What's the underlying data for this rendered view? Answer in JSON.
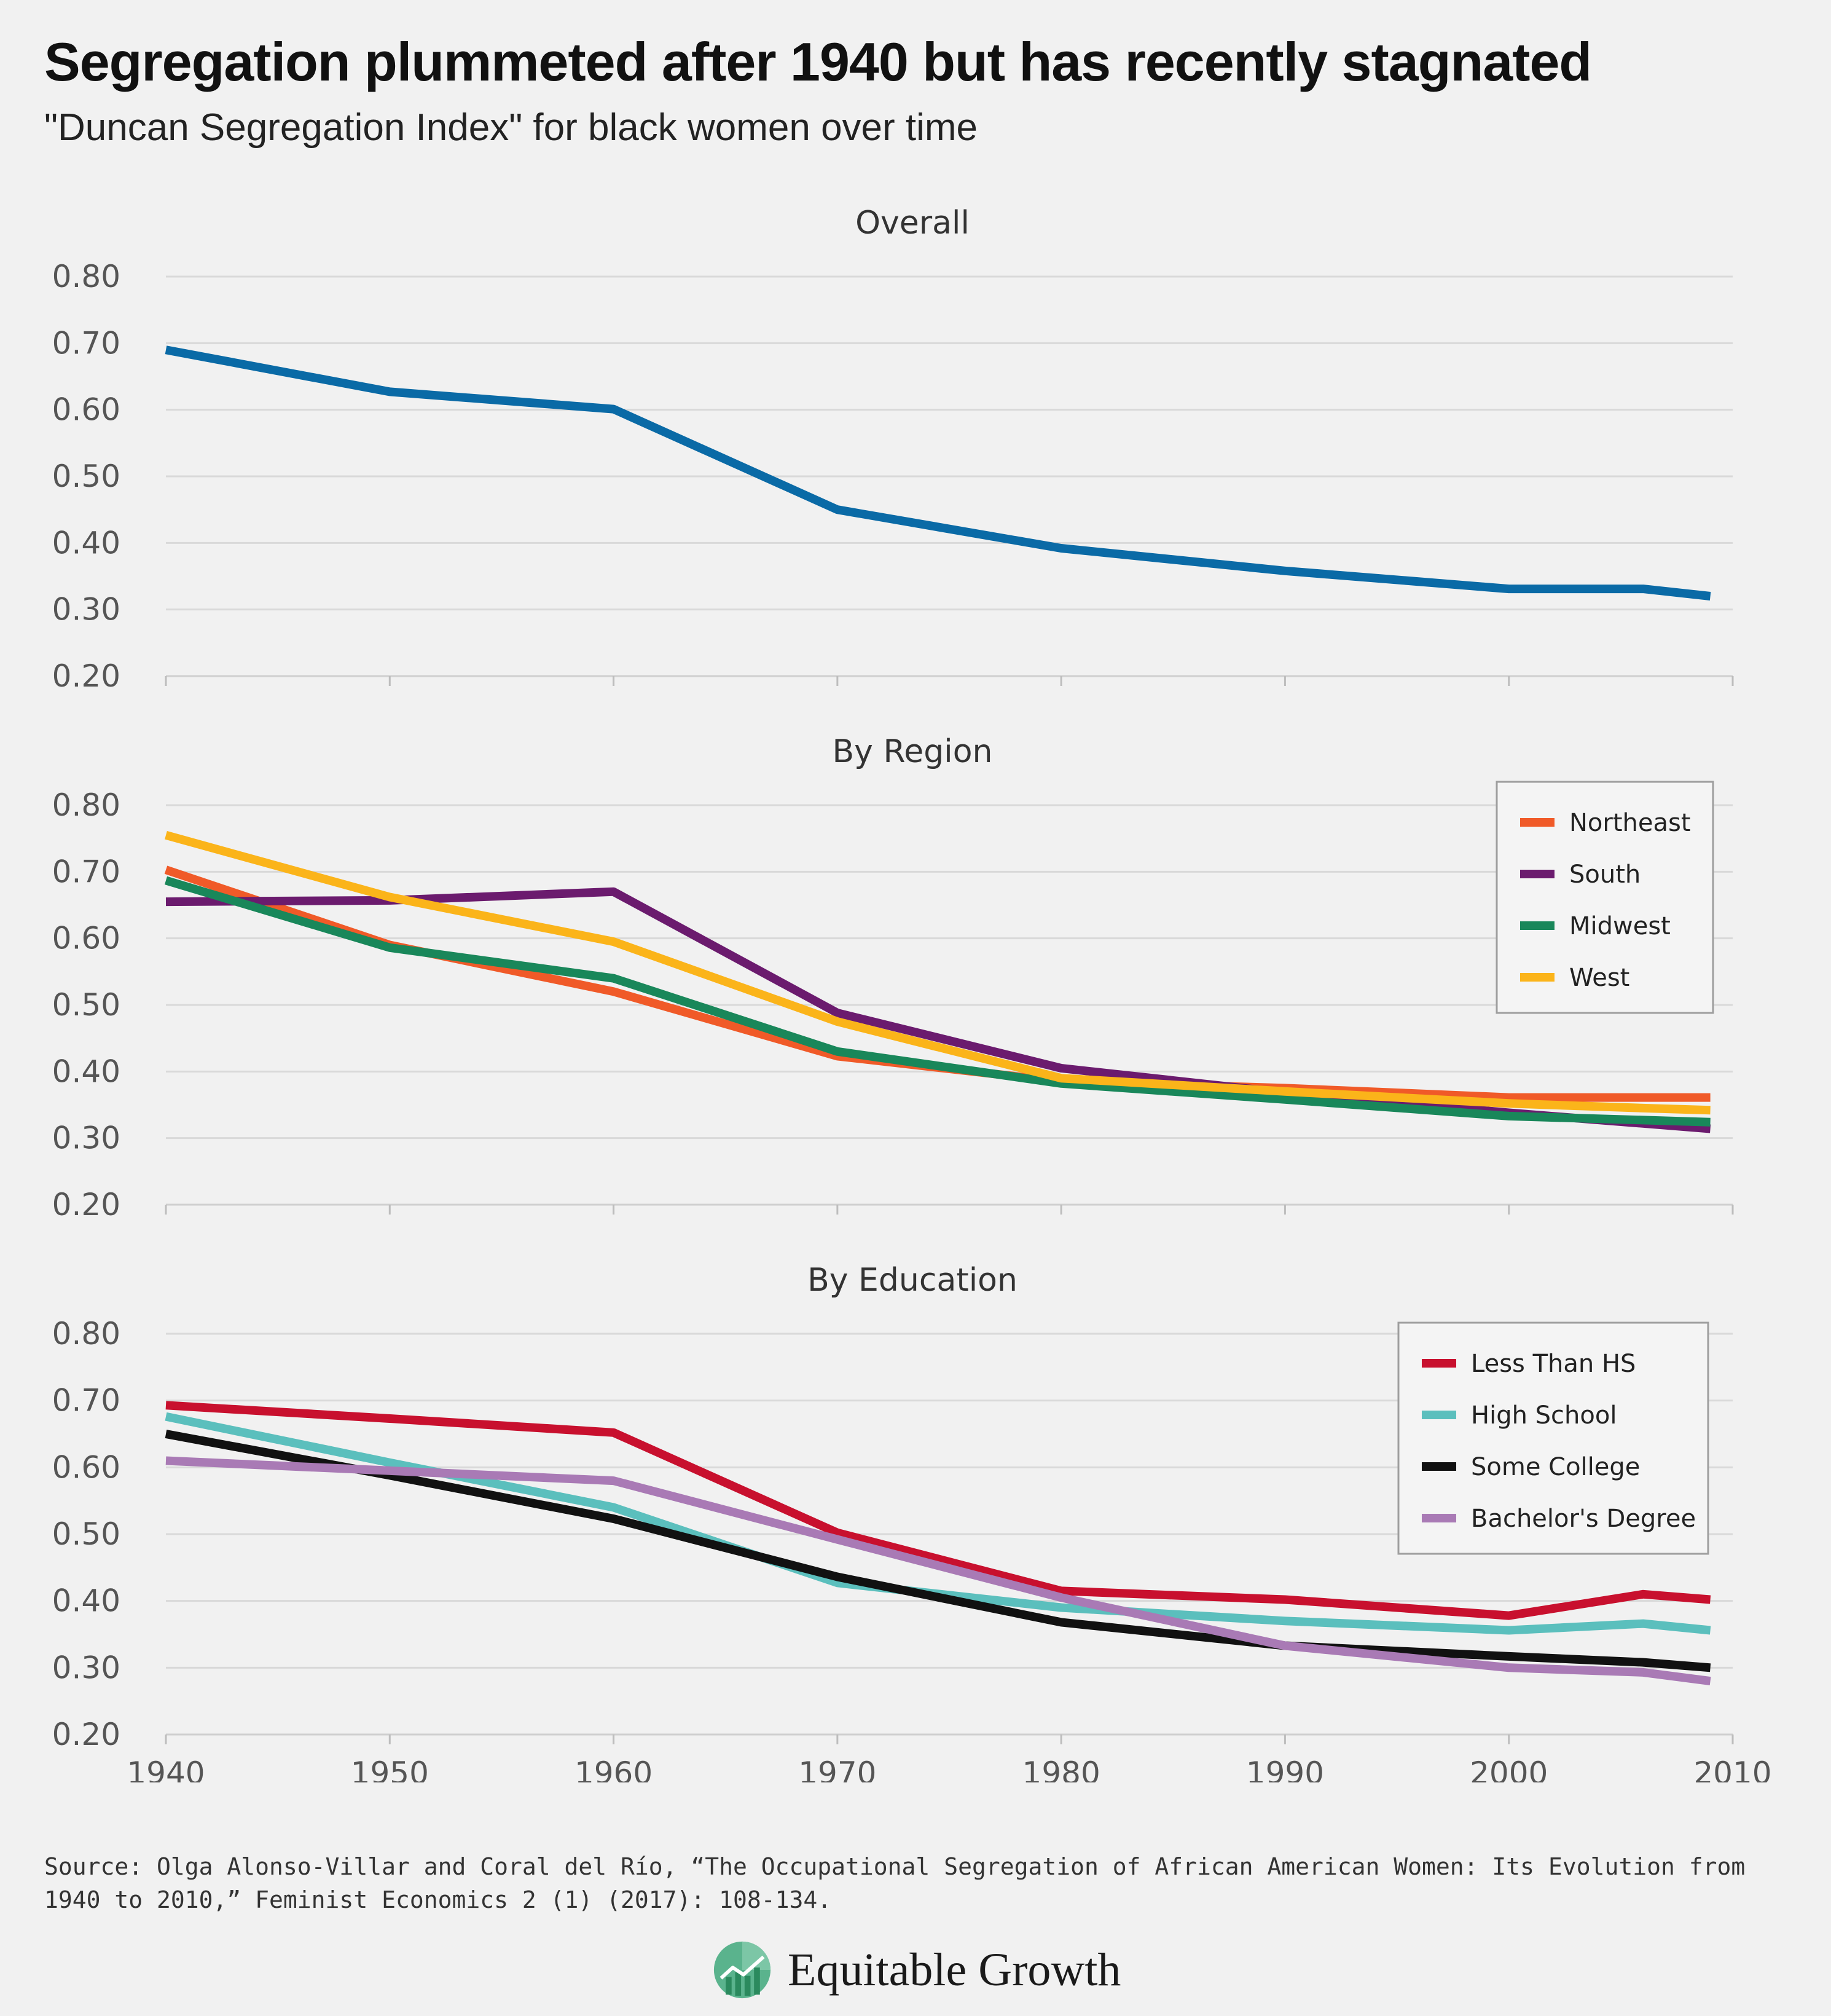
{
  "header": {
    "title": "Segregation plummeted after 1940 but has recently stagnated",
    "subtitle": "\"Duncan Segregation Index\" for black women over time"
  },
  "chart_data": [
    {
      "type": "line",
      "title": "Overall",
      "ylim": [
        0.2,
        0.8
      ],
      "yticks": [
        "0.80",
        "0.70",
        "0.60",
        "0.50",
        "0.40",
        "0.30",
        "0.20"
      ],
      "xlim": [
        1940,
        2010
      ],
      "grid": true,
      "series": [
        {
          "color": "#0a6aa6",
          "x": [
            1940,
            1950,
            1960,
            1970,
            1980,
            1990,
            2000,
            2006,
            2009
          ],
          "values": [
            0.69,
            0.627,
            0.601,
            0.45,
            0.392,
            0.358,
            0.331,
            0.331,
            0.32
          ]
        }
      ]
    },
    {
      "type": "line",
      "title": "By Region",
      "ylim": [
        0.2,
        0.8
      ],
      "yticks": [
        "0.80",
        "0.70",
        "0.60",
        "0.50",
        "0.40",
        "0.30",
        "0.20"
      ],
      "xlim": [
        1940,
        2010
      ],
      "grid": true,
      "legend": "top-right",
      "series": [
        {
          "name": "Northeast",
          "color": "#f05a28",
          "x": [
            1940,
            1950,
            1960,
            1970,
            1980,
            1990,
            2000,
            2006,
            2009
          ],
          "values": [
            0.703,
            0.59,
            0.52,
            0.423,
            0.385,
            0.375,
            0.361,
            0.361,
            0.361
          ]
        },
        {
          "name": "South",
          "color": "#6b1b6e",
          "x": [
            1940,
            1950,
            1960,
            1970,
            1980,
            1990,
            2000,
            2006,
            2009
          ],
          "values": [
            0.655,
            0.657,
            0.67,
            0.488,
            0.405,
            0.368,
            0.338,
            0.322,
            0.314
          ]
        },
        {
          "name": "Midwest",
          "color": "#19875a",
          "x": [
            1940,
            1950,
            1960,
            1970,
            1980,
            1990,
            2000,
            2006,
            2009
          ],
          "values": [
            0.687,
            0.586,
            0.54,
            0.43,
            0.382,
            0.358,
            0.333,
            0.327,
            0.324
          ]
        },
        {
          "name": "West",
          "color": "#fbb41a",
          "x": [
            1940,
            1950,
            1960,
            1970,
            1980,
            1990,
            2000,
            2006,
            2009
          ],
          "values": [
            0.755,
            0.662,
            0.595,
            0.475,
            0.39,
            0.37,
            0.352,
            0.345,
            0.342
          ]
        }
      ]
    },
    {
      "type": "line",
      "title": "By Education",
      "ylim": [
        0.2,
        0.8
      ],
      "yticks": [
        "0.80",
        "0.70",
        "0.60",
        "0.50",
        "0.40",
        "0.30",
        "0.20"
      ],
      "xticks": [
        "1940",
        "1950",
        "1960",
        "1970",
        "1980",
        "1990",
        "2000",
        "2010"
      ],
      "xlim": [
        1940,
        2010
      ],
      "grid": true,
      "legend": "top-right",
      "series": [
        {
          "name": "Less Than HS",
          "color": "#c8102e",
          "x": [
            1940,
            1950,
            1960,
            1970,
            1980,
            1990,
            2000,
            2006,
            2009
          ],
          "values": [
            0.693,
            0.673,
            0.652,
            0.502,
            0.415,
            0.402,
            0.378,
            0.41,
            0.402
          ]
        },
        {
          "name": "High School",
          "color": "#5bbfbd",
          "x": [
            1940,
            1950,
            1960,
            1970,
            1980,
            1990,
            2000,
            2006,
            2009
          ],
          "values": [
            0.676,
            0.607,
            0.54,
            0.427,
            0.39,
            0.37,
            0.356,
            0.366,
            0.356
          ]
        },
        {
          "name": "Some College",
          "color": "#111111",
          "x": [
            1940,
            1950,
            1960,
            1970,
            1980,
            1990,
            2000,
            2006,
            2009
          ],
          "values": [
            0.65,
            0.588,
            0.523,
            0.436,
            0.368,
            0.333,
            0.317,
            0.308,
            0.3
          ]
        },
        {
          "name": "Bachelor's Degree",
          "color": "#a97ab5",
          "x": [
            1940,
            1950,
            1960,
            1970,
            1980,
            1990,
            2000,
            2006,
            2009
          ],
          "values": [
            0.61,
            0.595,
            0.58,
            0.492,
            0.405,
            0.333,
            0.3,
            0.293,
            0.28
          ]
        }
      ]
    }
  ],
  "footer": {
    "source": "Source: Olga Alonso-Villar and Coral del Río, “The Occupational Segregation of African American Women: Its Evolution from 1940 to 2010,” Feminist Economics 2 (1) (2017): 108-134.",
    "brand": "Equitable Growth",
    "brand_icon": "growth-leaf-icon",
    "brand_colors": [
      "#5ab38d",
      "#2b8a5e"
    ]
  }
}
